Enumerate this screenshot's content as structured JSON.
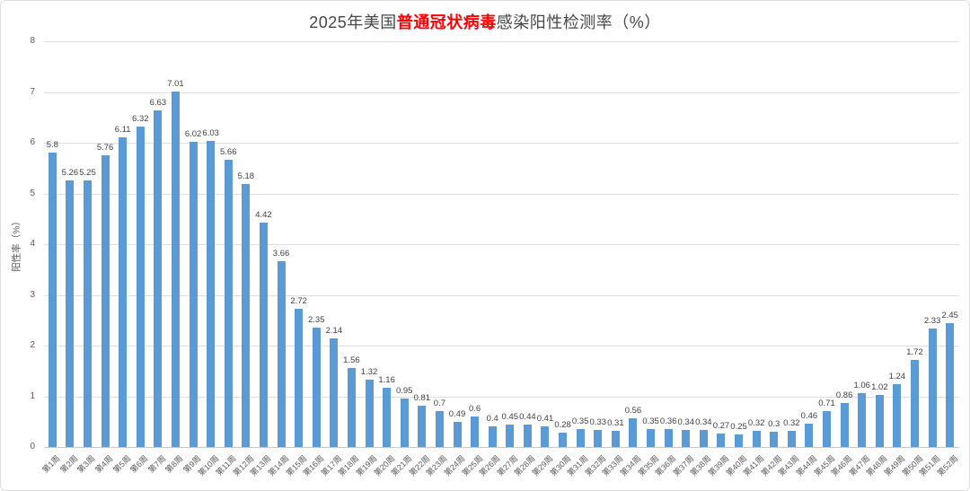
{
  "title": {
    "prefix": "2025年美国",
    "highlight": "普通冠状病毒",
    "suffix": "感染阳性检测率（%）"
  },
  "colors": {
    "bar": "#5b9bd5",
    "title_highlight": "#ff0000",
    "gridline": "#dedede",
    "axis_text": "#595959",
    "value_label_text": "#404040"
  },
  "chart_data": {
    "type": "bar",
    "title": "2025年美国普通冠状病毒感染阳性检测率（%）",
    "title_highlight_segment": "普通冠状病毒",
    "xlabel": "",
    "ylabel": "阳性率（%）",
    "ylim": [
      0,
      8
    ],
    "yticks": [
      0,
      1,
      2,
      3,
      4,
      5,
      6,
      7,
      8
    ],
    "grid": true,
    "legend_position": "none",
    "bar_color": "#5b9bd5",
    "data_labels_shown": true,
    "categories": [
      "第1周",
      "第2周",
      "第3周",
      "第4周",
      "第5周",
      "第6周",
      "第7周",
      "第8周",
      "第9周",
      "第10周",
      "第11周",
      "第12周",
      "第13周",
      "第14周",
      "第15周",
      "第16周",
      "第17周",
      "第18周",
      "第19周",
      "第20周",
      "第21周",
      "第22周",
      "第23周",
      "第24周",
      "第25周",
      "第26周",
      "第27周",
      "第28周",
      "第29周",
      "第30周",
      "第31周",
      "第32周",
      "第33周",
      "第34周",
      "第35周",
      "第36周",
      "第37周",
      "第38周",
      "第39周",
      "第40周",
      "第41周",
      "第42周",
      "第43周",
      "第44周",
      "第45周",
      "第46周",
      "第47周",
      "第48周",
      "第49周",
      "第50周",
      "第51周",
      "第52周"
    ],
    "values": [
      5.8,
      5.26,
      5.25,
      5.76,
      6.11,
      6.32,
      6.63,
      7.01,
      6.02,
      6.03,
      5.66,
      5.18,
      4.42,
      3.66,
      2.72,
      2.35,
      2.14,
      1.56,
      1.32,
      1.16,
      0.95,
      0.81,
      0.7,
      0.49,
      0.6,
      0.4,
      0.45,
      0.44,
      0.41,
      0.28,
      0.35,
      0.33,
      0.31,
      0.56,
      0.35,
      0.36,
      0.34,
      0.34,
      0.27,
      0.25,
      0.32,
      0.3,
      0.32,
      0.46,
      0.71,
      0.86,
      1.06,
      1.02,
      1.24,
      1.72,
      2.33,
      2.45
    ]
  }
}
